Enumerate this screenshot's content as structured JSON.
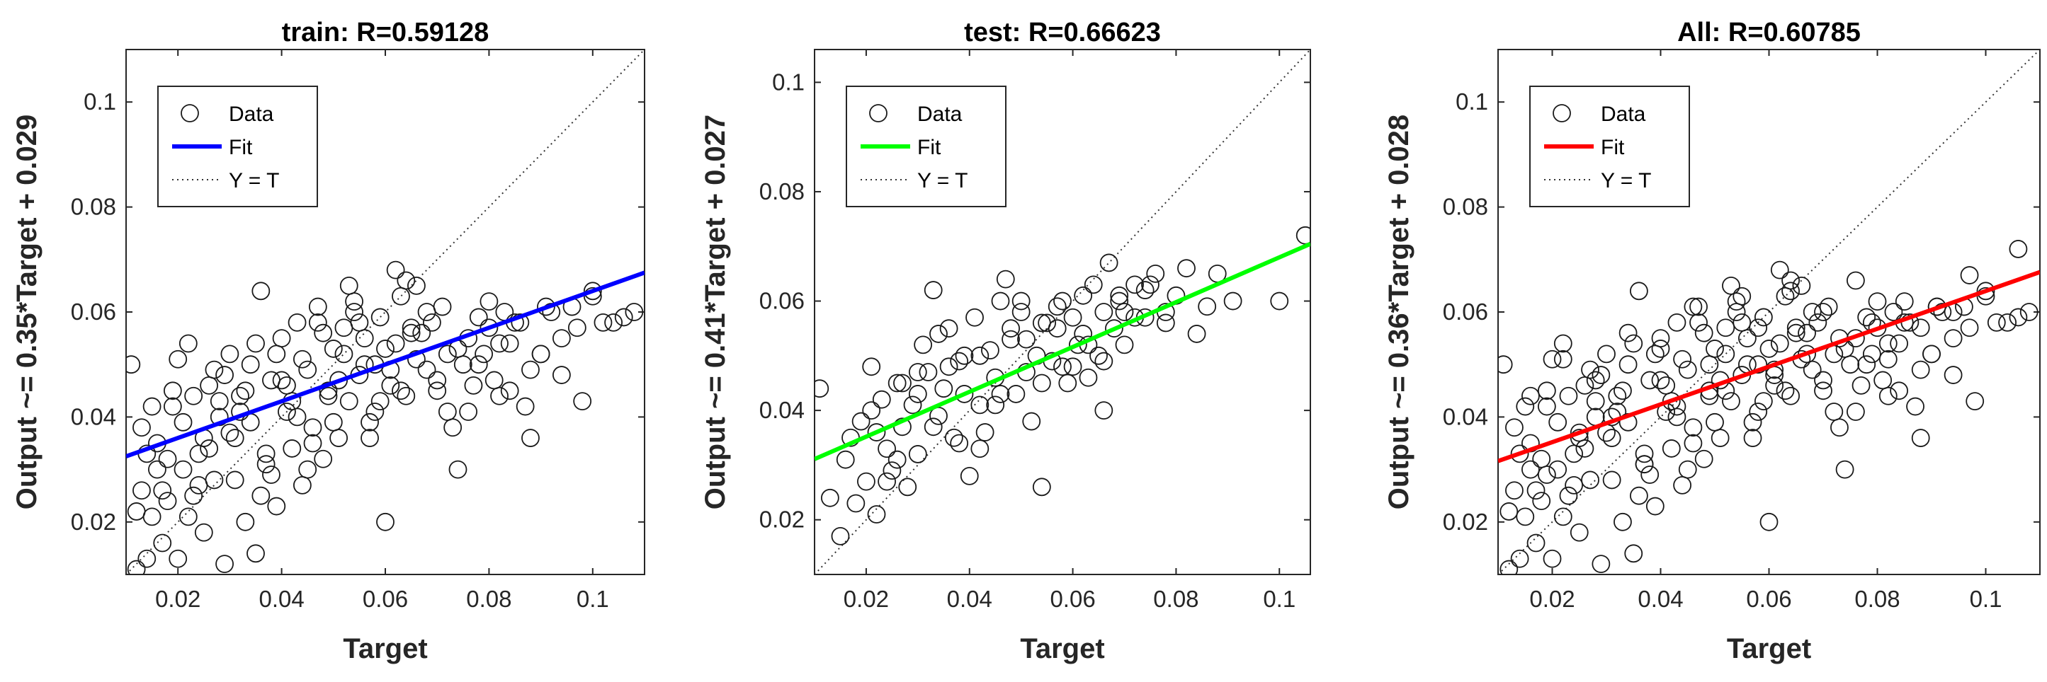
{
  "chart_data": [
    {
      "type": "scatter",
      "title": "train: R=0.59128",
      "xlabel": "Target",
      "ylabel": "Output ~= 0.35*Target + 0.029",
      "xlim": [
        0.01,
        0.11
      ],
      "ylim": [
        0.01,
        0.11
      ],
      "xticks": [
        "0.02",
        "0.04",
        "0.06",
        "0.08",
        "0.1"
      ],
      "yticks": [
        "0.02",
        "0.04",
        "0.06",
        "0.08",
        "0.1"
      ],
      "fit": {
        "slope": 0.35,
        "intercept": 0.029,
        "color": "#0000ff"
      },
      "legend": {
        "position": "top-left",
        "entries": [
          "Data",
          "Fit",
          "Y = T"
        ]
      },
      "grid": false,
      "points": {
        "x": [
          0.011,
          0.012,
          0.013,
          0.014,
          0.015,
          0.016,
          0.017,
          0.018,
          0.019,
          0.02,
          0.021,
          0.022,
          0.023,
          0.024,
          0.025,
          0.026,
          0.027,
          0.028,
          0.029,
          0.03,
          0.031,
          0.032,
          0.033,
          0.034,
          0.035,
          0.036,
          0.037,
          0.038,
          0.039,
          0.04,
          0.041,
          0.042,
          0.043,
          0.044,
          0.045,
          0.046,
          0.047,
          0.048,
          0.049,
          0.05,
          0.051,
          0.052,
          0.053,
          0.054,
          0.055,
          0.056,
          0.057,
          0.058,
          0.059,
          0.06,
          0.061,
          0.062,
          0.063,
          0.064,
          0.065,
          0.066,
          0.068,
          0.07,
          0.072,
          0.074,
          0.076,
          0.078,
          0.08,
          0.082,
          0.084,
          0.086,
          0.088,
          0.09,
          0.092,
          0.094,
          0.096,
          0.098,
          0.1,
          0.102,
          0.104,
          0.106,
          0.108,
          0.013,
          0.016,
          0.019,
          0.022,
          0.025,
          0.028,
          0.031,
          0.034,
          0.037,
          0.04,
          0.043,
          0.046,
          0.049,
          0.052,
          0.055,
          0.058,
          0.061,
          0.064,
          0.067,
          0.07,
          0.073,
          0.076,
          0.079,
          0.082,
          0.085,
          0.088,
          0.091,
          0.094,
          0.097,
          0.1,
          0.012,
          0.015,
          0.018,
          0.021,
          0.024,
          0.027,
          0.03,
          0.033,
          0.036,
          0.039,
          0.042,
          0.045,
          0.048,
          0.051,
          0.054,
          0.057,
          0.06,
          0.063,
          0.066,
          0.069,
          0.072,
          0.075,
          0.078,
          0.081,
          0.084,
          0.087,
          0.09,
          0.014,
          0.017,
          0.02,
          0.023,
          0.026,
          0.029,
          0.032,
          0.035,
          0.038,
          0.041,
          0.044,
          0.047,
          0.05,
          0.053,
          0.056,
          0.059,
          0.062,
          0.065,
          0.068,
          0.071,
          0.074,
          0.077,
          0.08,
          0.083
        ],
        "y": [
          0.05,
          0.011,
          0.026,
          0.013,
          0.021,
          0.035,
          0.016,
          0.024,
          0.042,
          0.013,
          0.03,
          0.054,
          0.025,
          0.033,
          0.018,
          0.046,
          0.028,
          0.04,
          0.012,
          0.052,
          0.036,
          0.044,
          0.02,
          0.039,
          0.014,
          0.064,
          0.031,
          0.047,
          0.023,
          0.055,
          0.041,
          0.034,
          0.058,
          0.027,
          0.049,
          0.038,
          0.061,
          0.032,
          0.045,
          0.053,
          0.036,
          0.057,
          0.043,
          0.062,
          0.048,
          0.055,
          0.039,
          0.05,
          0.059,
          0.02,
          0.046,
          0.054,
          0.063,
          0.044,
          0.057,
          0.051,
          0.06,
          0.047,
          0.052,
          0.03,
          0.041,
          0.05,
          0.062,
          0.054,
          0.045,
          0.058,
          0.036,
          0.052,
          0.06,
          0.048,
          0.061,
          0.043,
          0.064,
          0.058,
          0.058,
          0.059,
          0.06,
          0.038,
          0.03,
          0.045,
          0.021,
          0.036,
          0.043,
          0.028,
          0.05,
          0.033,
          0.047,
          0.04,
          0.035,
          0.044,
          0.052,
          0.058,
          0.041,
          0.049,
          0.066,
          0.056,
          0.045,
          0.038,
          0.055,
          0.052,
          0.044,
          0.058,
          0.049,
          0.061,
          0.055,
          0.057,
          0.063,
          0.022,
          0.042,
          0.032,
          0.039,
          0.027,
          0.049,
          0.037,
          0.045,
          0.025,
          0.052,
          0.043,
          0.03,
          0.056,
          0.047,
          0.06,
          0.036,
          0.053,
          0.045,
          0.065,
          0.058,
          0.041,
          0.05,
          0.059,
          0.047,
          0.054,
          0.042,
          0.052,
          0.033,
          0.026,
          0.051,
          0.044,
          0.034,
          0.048,
          0.041,
          0.054,
          0.029,
          0.046,
          0.051,
          0.058,
          0.039,
          0.065,
          0.05,
          0.043,
          0.068,
          0.056,
          0.049,
          0.061,
          0.053,
          0.046,
          0.057,
          0.06
        ]
      }
    },
    {
      "type": "scatter",
      "title": "test: R=0.66623",
      "xlabel": "Target",
      "ylabel": "Output ~= 0.41*Target + 0.027",
      "xlim": [
        0.01,
        0.106
      ],
      "ylim": [
        0.01,
        0.106
      ],
      "xticks": [
        "0.02",
        "0.04",
        "0.06",
        "0.08",
        "0.1"
      ],
      "yticks": [
        "0.02",
        "0.04",
        "0.06",
        "0.08",
        "0.1"
      ],
      "fit": {
        "slope": 0.41,
        "intercept": 0.027,
        "color": "#00ff00"
      },
      "legend": {
        "position": "top-left",
        "entries": [
          "Data",
          "Fit",
          "Y = T"
        ]
      },
      "grid": false,
      "points": {
        "x": [
          0.011,
          0.013,
          0.015,
          0.016,
          0.018,
          0.019,
          0.02,
          0.021,
          0.022,
          0.023,
          0.024,
          0.025,
          0.026,
          0.027,
          0.028,
          0.029,
          0.03,
          0.031,
          0.032,
          0.033,
          0.034,
          0.035,
          0.036,
          0.037,
          0.038,
          0.039,
          0.04,
          0.041,
          0.042,
          0.043,
          0.044,
          0.045,
          0.046,
          0.047,
          0.048,
          0.049,
          0.05,
          0.051,
          0.052,
          0.053,
          0.054,
          0.055,
          0.056,
          0.057,
          0.058,
          0.059,
          0.06,
          0.061,
          0.062,
          0.063,
          0.064,
          0.065,
          0.066,
          0.067,
          0.068,
          0.069,
          0.07,
          0.072,
          0.074,
          0.076,
          0.078,
          0.08,
          0.082,
          0.084,
          0.086,
          0.088,
          0.091,
          0.1,
          0.105,
          0.017,
          0.021,
          0.024,
          0.027,
          0.03,
          0.033,
          0.036,
          0.039,
          0.042,
          0.045,
          0.048,
          0.051,
          0.054,
          0.057,
          0.06,
          0.063,
          0.066,
          0.069,
          0.072,
          0.075,
          0.078,
          0.022,
          0.026,
          0.03,
          0.034,
          0.038,
          0.042,
          0.046,
          0.05,
          0.054,
          0.058,
          0.062,
          0.066,
          0.07,
          0.074
        ],
        "y": [
          0.044,
          0.024,
          0.017,
          0.031,
          0.023,
          0.038,
          0.027,
          0.048,
          0.021,
          0.042,
          0.033,
          0.029,
          0.045,
          0.037,
          0.026,
          0.041,
          0.032,
          0.052,
          0.047,
          0.062,
          0.039,
          0.044,
          0.055,
          0.035,
          0.049,
          0.043,
          0.028,
          0.057,
          0.041,
          0.036,
          0.051,
          0.046,
          0.06,
          0.064,
          0.053,
          0.043,
          0.058,
          0.047,
          0.038,
          0.05,
          0.026,
          0.056,
          0.049,
          0.055,
          0.06,
          0.045,
          0.057,
          0.052,
          0.061,
          0.046,
          0.063,
          0.05,
          0.058,
          0.067,
          0.055,
          0.061,
          0.052,
          0.063,
          0.057,
          0.065,
          0.056,
          0.061,
          0.066,
          0.054,
          0.059,
          0.065,
          0.06,
          0.06,
          0.072,
          0.035,
          0.04,
          0.027,
          0.045,
          0.043,
          0.037,
          0.048,
          0.05,
          0.033,
          0.041,
          0.055,
          0.053,
          0.045,
          0.059,
          0.048,
          0.052,
          0.04,
          0.06,
          0.057,
          0.063,
          0.058,
          0.036,
          0.031,
          0.047,
          0.054,
          0.034,
          0.05,
          0.043,
          0.06,
          0.056,
          0.048,
          0.054,
          0.049,
          0.058,
          0.062
        ]
      }
    },
    {
      "type": "scatter",
      "title": "All: R=0.60785",
      "xlabel": "Target",
      "ylabel": "Output ~= 0.36*Target + 0.028",
      "xlim": [
        0.01,
        0.11
      ],
      "ylim": [
        0.01,
        0.11
      ],
      "xticks": [
        "0.02",
        "0.04",
        "0.06",
        "0.08",
        "0.1"
      ],
      "yticks": [
        "0.02",
        "0.04",
        "0.06",
        "0.08",
        "0.1"
      ],
      "fit": {
        "slope": 0.36,
        "intercept": 0.028,
        "color": "#ff0000"
      },
      "legend": {
        "position": "top-left",
        "entries": [
          "Data",
          "Fit",
          "Y = T"
        ]
      },
      "grid": false,
      "points": {
        "x": [
          0.011,
          0.012,
          0.013,
          0.014,
          0.015,
          0.016,
          0.017,
          0.018,
          0.019,
          0.02,
          0.021,
          0.022,
          0.023,
          0.024,
          0.025,
          0.026,
          0.027,
          0.028,
          0.029,
          0.03,
          0.031,
          0.032,
          0.033,
          0.034,
          0.035,
          0.036,
          0.037,
          0.038,
          0.039,
          0.04,
          0.041,
          0.042,
          0.043,
          0.044,
          0.045,
          0.046,
          0.047,
          0.048,
          0.049,
          0.05,
          0.051,
          0.052,
          0.053,
          0.054,
          0.055,
          0.056,
          0.057,
          0.058,
          0.059,
          0.06,
          0.061,
          0.062,
          0.063,
          0.064,
          0.065,
          0.066,
          0.068,
          0.07,
          0.072,
          0.074,
          0.076,
          0.078,
          0.08,
          0.082,
          0.084,
          0.086,
          0.088,
          0.09,
          0.092,
          0.094,
          0.096,
          0.098,
          0.1,
          0.102,
          0.104,
          0.106,
          0.108,
          0.013,
          0.016,
          0.019,
          0.022,
          0.025,
          0.028,
          0.031,
          0.034,
          0.037,
          0.04,
          0.043,
          0.046,
          0.049,
          0.052,
          0.055,
          0.058,
          0.061,
          0.064,
          0.067,
          0.07,
          0.073,
          0.076,
          0.079,
          0.082,
          0.085,
          0.088,
          0.091,
          0.094,
          0.097,
          0.1,
          0.012,
          0.015,
          0.018,
          0.021,
          0.024,
          0.027,
          0.03,
          0.033,
          0.036,
          0.039,
          0.042,
          0.045,
          0.048,
          0.051,
          0.054,
          0.057,
          0.06,
          0.063,
          0.066,
          0.069,
          0.072,
          0.075,
          0.078,
          0.081,
          0.084,
          0.087,
          0.09,
          0.014,
          0.017,
          0.02,
          0.023,
          0.026,
          0.029,
          0.032,
          0.035,
          0.038,
          0.041,
          0.044,
          0.047,
          0.05,
          0.053,
          0.056,
          0.059,
          0.062,
          0.065,
          0.068,
          0.071,
          0.074,
          0.077,
          0.08,
          0.083,
          0.016,
          0.019,
          0.022,
          0.025,
          0.028,
          0.031,
          0.034,
          0.037,
          0.04,
          0.043,
          0.046,
          0.049,
          0.052,
          0.055,
          0.058,
          0.061,
          0.064,
          0.067,
          0.07,
          0.073,
          0.076,
          0.079,
          0.082,
          0.085,
          0.088,
          0.091,
          0.094,
          0.097,
          0.106
        ],
        "y": [
          0.05,
          0.011,
          0.026,
          0.013,
          0.021,
          0.035,
          0.016,
          0.024,
          0.042,
          0.013,
          0.03,
          0.054,
          0.025,
          0.033,
          0.018,
          0.046,
          0.028,
          0.04,
          0.012,
          0.052,
          0.036,
          0.044,
          0.02,
          0.039,
          0.014,
          0.064,
          0.031,
          0.047,
          0.023,
          0.055,
          0.041,
          0.034,
          0.058,
          0.027,
          0.049,
          0.038,
          0.061,
          0.032,
          0.045,
          0.053,
          0.036,
          0.057,
          0.043,
          0.062,
          0.048,
          0.055,
          0.039,
          0.05,
          0.059,
          0.02,
          0.046,
          0.054,
          0.063,
          0.044,
          0.057,
          0.051,
          0.06,
          0.047,
          0.052,
          0.03,
          0.041,
          0.05,
          0.062,
          0.054,
          0.045,
          0.058,
          0.036,
          0.052,
          0.06,
          0.048,
          0.061,
          0.043,
          0.064,
          0.058,
          0.058,
          0.059,
          0.06,
          0.038,
          0.03,
          0.045,
          0.021,
          0.036,
          0.043,
          0.028,
          0.05,
          0.033,
          0.047,
          0.04,
          0.035,
          0.044,
          0.052,
          0.058,
          0.041,
          0.049,
          0.066,
          0.056,
          0.045,
          0.038,
          0.055,
          0.052,
          0.044,
          0.058,
          0.049,
          0.061,
          0.055,
          0.057,
          0.063,
          0.022,
          0.042,
          0.032,
          0.039,
          0.027,
          0.049,
          0.037,
          0.045,
          0.025,
          0.052,
          0.043,
          0.03,
          0.056,
          0.047,
          0.06,
          0.036,
          0.053,
          0.045,
          0.065,
          0.058,
          0.041,
          0.05,
          0.059,
          0.047,
          0.054,
          0.042,
          0.052,
          0.033,
          0.026,
          0.051,
          0.044,
          0.034,
          0.048,
          0.041,
          0.054,
          0.029,
          0.046,
          0.051,
          0.058,
          0.039,
          0.065,
          0.05,
          0.043,
          0.068,
          0.056,
          0.049,
          0.061,
          0.053,
          0.046,
          0.057,
          0.06,
          0.044,
          0.029,
          0.051,
          0.037,
          0.047,
          0.04,
          0.056,
          0.031,
          0.053,
          0.042,
          0.061,
          0.05,
          0.045,
          0.063,
          0.057,
          0.048,
          0.064,
          0.052,
          0.06,
          0.055,
          0.066,
          0.058,
          0.051,
          0.062,
          0.057,
          0.061,
          0.06,
          0.067,
          0.072
        ]
      }
    }
  ]
}
